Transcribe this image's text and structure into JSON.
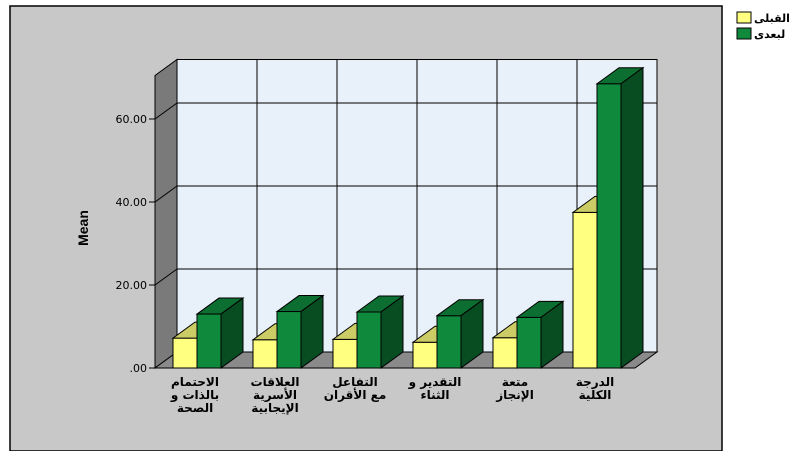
{
  "chart_data": {
    "type": "bar",
    "ylabel": "Mean",
    "ylim": [
      0,
      70
    ],
    "yticks": [
      0,
      20,
      40,
      60
    ],
    "ytick_labels": [
      ".00",
      "20.00",
      "40.00",
      "60.00"
    ],
    "categories": [
      [
        "الاحتمام",
        "بالذات و",
        "الصحة"
      ],
      [
        "العلاقات",
        "الأسرية",
        "الإيجابية"
      ],
      [
        "التفاعل",
        "مع الأقران"
      ],
      [
        "التقدير و",
        "الثناء"
      ],
      [
        "متعة",
        "الإنجاز"
      ],
      [
        "الدرجة",
        "الكلية"
      ]
    ],
    "series": [
      {
        "name": "القبلى",
        "color": "#ffff80",
        "values": [
          7.2,
          6.8,
          6.9,
          6.2,
          7.3,
          37.5
        ]
      },
      {
        "name": "لبعدى",
        "color": "#0f8a3c",
        "values": [
          13.0,
          13.6,
          13.5,
          12.6,
          12.2,
          68.5
        ]
      }
    ],
    "grid": true,
    "legend": "top-right",
    "style": "3d"
  }
}
